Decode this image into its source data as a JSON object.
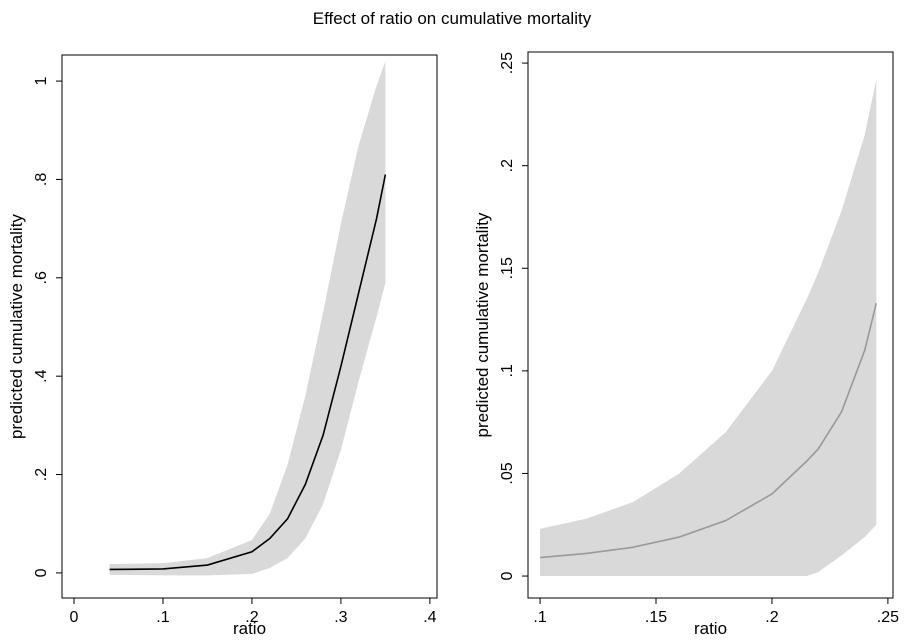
{
  "title": "Effect of ratio on cumulative mortality",
  "chart_data": [
    {
      "type": "line",
      "xlabel": "ratio",
      "ylabel": "predicted cumulative mortality",
      "x": [
        0.04,
        0.1,
        0.15,
        0.2,
        0.22,
        0.24,
        0.26,
        0.28,
        0.3,
        0.32,
        0.34,
        0.35
      ],
      "values": [
        0.007,
        0.008,
        0.016,
        0.043,
        0.07,
        0.11,
        0.18,
        0.28,
        0.42,
        0.57,
        0.72,
        0.81
      ],
      "lower": [
        -0.004,
        -0.005,
        -0.005,
        -0.002,
        0.01,
        0.03,
        0.07,
        0.14,
        0.25,
        0.39,
        0.52,
        0.59
      ],
      "upper": [
        0.018,
        0.02,
        0.03,
        0.067,
        0.12,
        0.22,
        0.36,
        0.53,
        0.71,
        0.87,
        0.99,
        1.04
      ],
      "color": "#000000",
      "band_color": "#d9d9d9",
      "xlim": [
        -0.0135,
        0.408
      ],
      "ylim": [
        -0.051,
        1.053
      ],
      "xticks": [
        0,
        {
          "value": 0.1,
          "label": ".1"
        },
        {
          "value": 0.2,
          "label": ".2"
        },
        {
          "value": 0.3,
          "label": ".3"
        },
        {
          "value": 0.4,
          "label": ".4"
        }
      ],
      "yticks": [
        0,
        {
          "value": 0.2,
          "label": ".2"
        },
        {
          "value": 0.4,
          "label": ".4"
        },
        {
          "value": 0.6,
          "label": ".6"
        },
        {
          "value": 0.8,
          "label": ".8"
        },
        1
      ]
    },
    {
      "type": "line",
      "xlabel": "ratio",
      "ylabel": "predicted cumulative mortality",
      "x": [
        0.1,
        0.12,
        0.14,
        0.16,
        0.18,
        0.2,
        0.215,
        0.22,
        0.23,
        0.24,
        0.245
      ],
      "values": [
        0.009,
        0.011,
        0.014,
        0.019,
        0.027,
        0.04,
        0.056,
        0.062,
        0.08,
        0.11,
        0.133
      ],
      "lower": [
        0,
        0,
        0,
        0,
        0,
        0,
        0,
        0.002,
        0.01,
        0.019,
        0.025
      ],
      "upper": [
        0.023,
        0.028,
        0.036,
        0.05,
        0.07,
        0.1,
        0.135,
        0.148,
        0.178,
        0.215,
        0.242
      ],
      "color": "#999999",
      "band_color": "#d9d9d9",
      "xlim": [
        0.0948,
        0.2522
      ],
      "ylim": [
        -0.0107,
        0.2554
      ],
      "xticks": [
        {
          "value": 0.1,
          "label": ".1"
        },
        {
          "value": 0.15,
          "label": ".15"
        },
        {
          "value": 0.2,
          "label": ".2"
        },
        {
          "value": 0.25,
          "label": ".25"
        }
      ],
      "yticks": [
        0,
        {
          "value": 0.05,
          "label": ".05"
        },
        {
          "value": 0.1,
          "label": ".1"
        },
        {
          "value": 0.15,
          "label": ".15"
        },
        {
          "value": 0.2,
          "label": ".2"
        },
        {
          "value": 0.25,
          "label": ".25"
        }
      ]
    }
  ]
}
